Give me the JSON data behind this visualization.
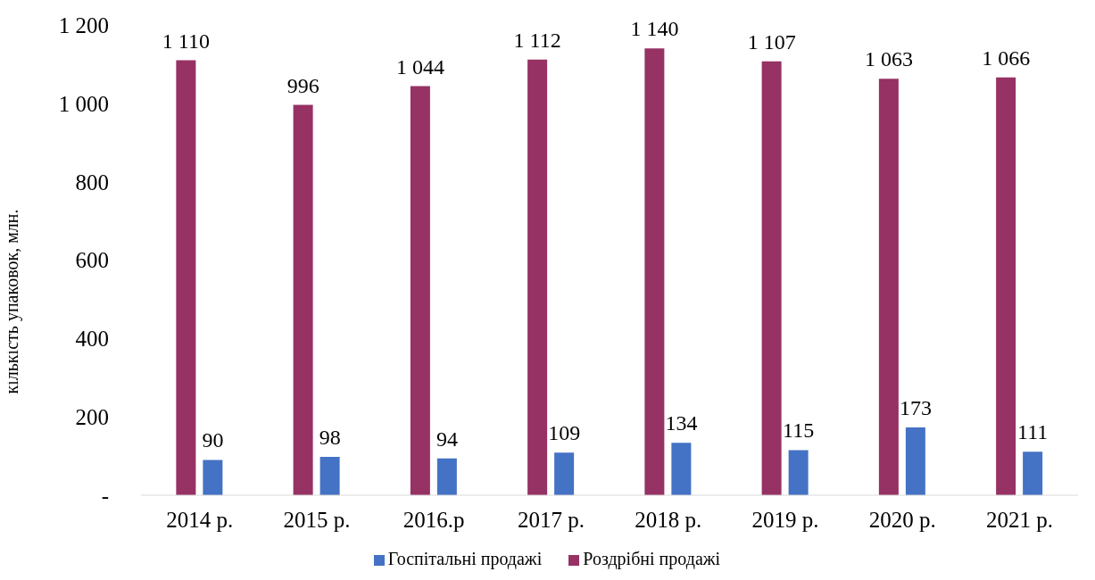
{
  "chart_data": {
    "type": "bar",
    "ylabel": "кількість упаковок, млн.",
    "categories": [
      "2014 р.",
      "2015 р.",
      "2016.р",
      "2017 р.",
      "2018 р.",
      "2019 р.",
      "2020 р.",
      "2021 р."
    ],
    "series": [
      {
        "name": "Роздрібні продажі",
        "color": "#963264",
        "values": [
          1110,
          996,
          1044,
          1112,
          1140,
          1107,
          1063,
          1066
        ],
        "value_labels": [
          "1 110",
          "996",
          "1 044",
          "1 112",
          "1 140",
          "1 107",
          "1 063",
          "1 066"
        ]
      },
      {
        "name": "Госпітальні продажі",
        "color": "#4472c4",
        "values": [
          90,
          98,
          94,
          109,
          134,
          115,
          173,
          111
        ],
        "value_labels": [
          "90",
          "98",
          "94",
          "109",
          "134",
          "115",
          "173",
          "111"
        ]
      }
    ],
    "ylim": [
      0,
      1200
    ],
    "yticks": [
      {
        "value": 0,
        "label": "-"
      },
      200,
      400,
      600,
      800,
      {
        "value": 1000,
        "label": "1 000"
      },
      {
        "value": 1200,
        "label": "1 200"
      }
    ],
    "legend": "bottom"
  }
}
